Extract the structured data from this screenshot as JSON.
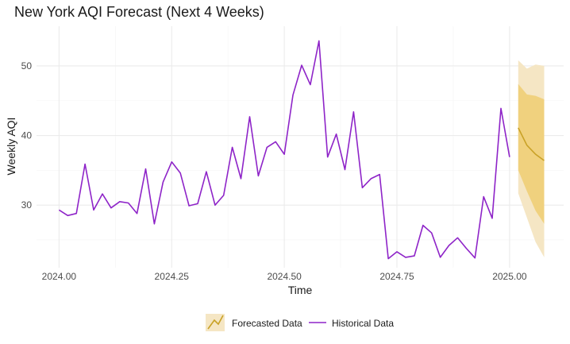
{
  "chart_data": {
    "type": "line",
    "title": "New York AQI Forecast (Next 4 Weeks)",
    "xlabel": "Time",
    "ylabel": "Weekly AQI",
    "xlim": [
      2023.95,
      2025.12
    ],
    "ylim": [
      21.0,
      55.7
    ],
    "x_ticks": [
      2024.0,
      2024.25,
      2024.5,
      2024.75,
      2025.0
    ],
    "x_tick_labels": [
      "2024.00",
      "2024.25",
      "2024.50",
      "2024.75",
      "2025.00"
    ],
    "y_ticks": [
      30,
      40,
      50
    ],
    "y_tick_labels": [
      "30",
      "40",
      "50"
    ],
    "grid": true,
    "legend_position": "bottom",
    "series": [
      {
        "name": "Historical Data",
        "color": "#8e24c8",
        "x": [
          2024.0,
          2024.0192,
          2024.0385,
          2024.0577,
          2024.0769,
          2024.0962,
          2024.1154,
          2024.1346,
          2024.1538,
          2024.1731,
          2024.1923,
          2024.2115,
          2024.2308,
          2024.25,
          2024.2692,
          2024.2885,
          2024.3077,
          2024.3269,
          2024.3462,
          2024.3654,
          2024.3846,
          2024.4038,
          2024.4231,
          2024.4423,
          2024.4615,
          2024.4808,
          2024.5,
          2024.5192,
          2024.5385,
          2024.5577,
          2024.5769,
          2024.5962,
          2024.6154,
          2024.6346,
          2024.6538,
          2024.6731,
          2024.6923,
          2024.7115,
          2024.7308,
          2024.75,
          2024.7692,
          2024.7885,
          2024.8077,
          2024.8269,
          2024.8462,
          2024.8654,
          2024.8846,
          2024.9038,
          2024.9231,
          2024.9423,
          2024.9615,
          2024.9808,
          2025.0
        ],
        "values": [
          29.3,
          28.5,
          28.8,
          35.9,
          29.3,
          31.6,
          29.6,
          30.5,
          30.3,
          28.8,
          35.2,
          27.3,
          33.3,
          36.2,
          34.6,
          29.9,
          30.2,
          34.8,
          30.0,
          31.4,
          38.3,
          33.8,
          42.7,
          34.2,
          38.3,
          39.1,
          37.3,
          45.8,
          50.1,
          47.3,
          53.6,
          36.9,
          40.2,
          35.1,
          43.4,
          32.5,
          33.8,
          34.4,
          22.3,
          23.3,
          22.5,
          22.7,
          27.1,
          26.0,
          22.5,
          24.2,
          25.3,
          23.8,
          22.4,
          31.2,
          28.1,
          43.9,
          36.9
        ]
      },
      {
        "name": "Forecasted Data",
        "color": "#c9a227",
        "x": [
          2025.0192,
          2025.0385,
          2025.0577,
          2025.0769
        ],
        "values": [
          41.1,
          38.6,
          37.3,
          36.4
        ],
        "lower_80": [
          35.0,
          32.0,
          29.2,
          27.3
        ],
        "upper_80": [
          47.4,
          45.9,
          45.7,
          45.2
        ],
        "lower_95": [
          31.7,
          28.2,
          24.7,
          22.5
        ],
        "upper_95": [
          50.8,
          49.6,
          50.2,
          50.0
        ]
      }
    ],
    "colors": {
      "band_95": "#f5e6c4",
      "band_80": "#f0d17e",
      "forecast_line": "#c9a227",
      "historical_line": "#8e24c8"
    }
  }
}
